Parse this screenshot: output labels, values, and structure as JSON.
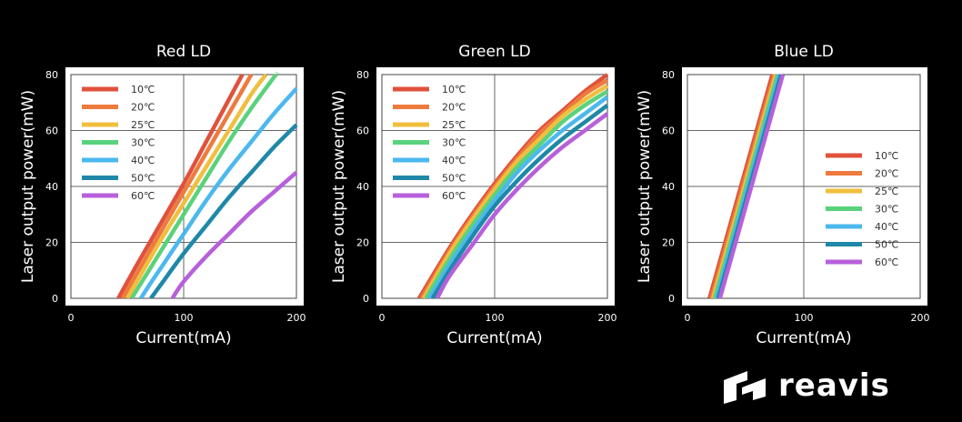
{
  "chart_data": [
    {
      "type": "line",
      "title": "Red LD",
      "xlabel": "Current(mA)",
      "ylabel": "Laser output power(mW)",
      "xlim": [
        0,
        200
      ],
      "ylim": [
        0,
        80
      ],
      "xticks": [
        0,
        100,
        200
      ],
      "yticks": [
        0,
        20,
        40,
        60,
        80
      ],
      "grid": true,
      "legend_position": "top-left",
      "series": [
        {
          "name": "10℃",
          "color": "#e0513c",
          "x": [
            42,
            60,
            80,
            100,
            120,
            140,
            152
          ],
          "y": [
            0,
            13,
            27,
            41,
            56,
            71,
            80
          ]
        },
        {
          "name": "20℃",
          "color": "#ee7a3d",
          "x": [
            46,
            60,
            80,
            100,
            120,
            140,
            160
          ],
          "y": [
            0,
            10,
            24,
            38,
            52,
            66,
            80
          ]
        },
        {
          "name": "25℃",
          "color": "#f0bf3e",
          "x": [
            50,
            60,
            80,
            100,
            120,
            140,
            160,
            173
          ],
          "y": [
            0,
            7,
            21,
            34,
            47,
            60,
            73,
            80
          ]
        },
        {
          "name": "30℃",
          "color": "#5ad27c",
          "x": [
            54,
            60,
            80,
            100,
            120,
            140,
            160,
            180,
            182
          ],
          "y": [
            0,
            4,
            17,
            30,
            43,
            56,
            68,
            79,
            80
          ]
        },
        {
          "name": "40℃",
          "color": "#4cb8ee",
          "x": [
            62,
            70,
            80,
            100,
            120,
            140,
            160,
            180,
            200
          ],
          "y": [
            0,
            5,
            11,
            23,
            35,
            46,
            56,
            66,
            75
          ]
        },
        {
          "name": "50℃",
          "color": "#1f88a8",
          "x": [
            71,
            80,
            100,
            120,
            140,
            160,
            180,
            200
          ],
          "y": [
            0,
            5,
            16,
            26,
            36,
            45,
            54,
            62
          ]
        },
        {
          "name": "60℃",
          "color": "#b760db",
          "x": [
            90,
            100,
            120,
            140,
            160,
            180,
            200
          ],
          "y": [
            0,
            6,
            15,
            23,
            31,
            38,
            45
          ]
        }
      ]
    },
    {
      "type": "line",
      "title": "Green LD",
      "xlabel": "Current(mA)",
      "ylabel": "Laser output power(mW)",
      "xlim": [
        0,
        200
      ],
      "ylim": [
        0,
        80
      ],
      "xticks": [
        0,
        100,
        200
      ],
      "yticks": [
        0,
        20,
        40,
        60,
        80
      ],
      "grid": true,
      "legend_position": "top-left",
      "series": [
        {
          "name": "10℃",
          "color": "#e0513c",
          "x": [
            33,
            60,
            80,
            100,
            120,
            140,
            160,
            180,
            200
          ],
          "y": [
            0,
            18,
            30,
            41,
            51,
            60,
            67,
            74,
            80
          ]
        },
        {
          "name": "20℃",
          "color": "#ee7a3d",
          "x": [
            35,
            60,
            80,
            100,
            120,
            140,
            160,
            180,
            200
          ],
          "y": [
            0,
            17,
            29,
            40,
            50,
            59,
            66,
            73,
            78
          ]
        },
        {
          "name": "25℃",
          "color": "#f0bf3e",
          "x": [
            37,
            60,
            80,
            100,
            120,
            140,
            160,
            180,
            200
          ],
          "y": [
            0,
            16,
            28,
            39,
            49,
            57,
            65,
            71,
            76
          ]
        },
        {
          "name": "30℃",
          "color": "#5ad27c",
          "x": [
            39,
            60,
            80,
            100,
            120,
            140,
            160,
            180,
            200
          ],
          "y": [
            0,
            14,
            26,
            37,
            47,
            55,
            63,
            69,
            74
          ]
        },
        {
          "name": "40℃",
          "color": "#4cb8ee",
          "x": [
            42,
            60,
            80,
            100,
            120,
            140,
            160,
            180,
            200
          ],
          "y": [
            0,
            12,
            24,
            35,
            45,
            53,
            60,
            66,
            72
          ]
        },
        {
          "name": "50℃",
          "color": "#1f88a8",
          "x": [
            45,
            60,
            80,
            100,
            120,
            140,
            160,
            180,
            200
          ],
          "y": [
            0,
            10,
            22,
            33,
            42,
            50,
            57,
            63,
            69
          ]
        },
        {
          "name": "60℃",
          "color": "#b760db",
          "x": [
            49,
            60,
            80,
            100,
            120,
            140,
            160,
            180,
            200
          ],
          "y": [
            0,
            8,
            19,
            30,
            39,
            47,
            54,
            60,
            66
          ]
        }
      ]
    },
    {
      "type": "line",
      "title": "Blue LD",
      "xlabel": "Current(mA)",
      "ylabel": "Laser output power(mW)",
      "xlim": [
        0,
        200
      ],
      "ylim": [
        0,
        80
      ],
      "xticks": [
        0,
        100,
        200
      ],
      "yticks": [
        0,
        20,
        40,
        60,
        80
      ],
      "grid": true,
      "legend_position": "center-right",
      "series": [
        {
          "name": "10℃",
          "color": "#e0513c",
          "x": [
            19,
            73
          ],
          "y": [
            0,
            80
          ]
        },
        {
          "name": "20℃",
          "color": "#ee7a3d",
          "x": [
            20.5,
            74.5
          ],
          "y": [
            0,
            80
          ]
        },
        {
          "name": "25℃",
          "color": "#f0bf3e",
          "x": [
            22,
            76
          ],
          "y": [
            0,
            80
          ]
        },
        {
          "name": "30℃",
          "color": "#5ad27c",
          "x": [
            23.5,
            77.5
          ],
          "y": [
            0,
            80
          ]
        },
        {
          "name": "40℃",
          "color": "#4cb8ee",
          "x": [
            25,
            79
          ],
          "y": [
            0,
            80
          ]
        },
        {
          "name": "50℃",
          "color": "#1f88a8",
          "x": [
            26.5,
            80.5
          ],
          "y": [
            0,
            80
          ]
        },
        {
          "name": "60℃",
          "color": "#b760db",
          "x": [
            28,
            82
          ],
          "y": [
            0,
            80
          ]
        }
      ]
    }
  ],
  "brand": {
    "name": "reavis",
    "logo_icon": "reavis-logo-icon"
  }
}
